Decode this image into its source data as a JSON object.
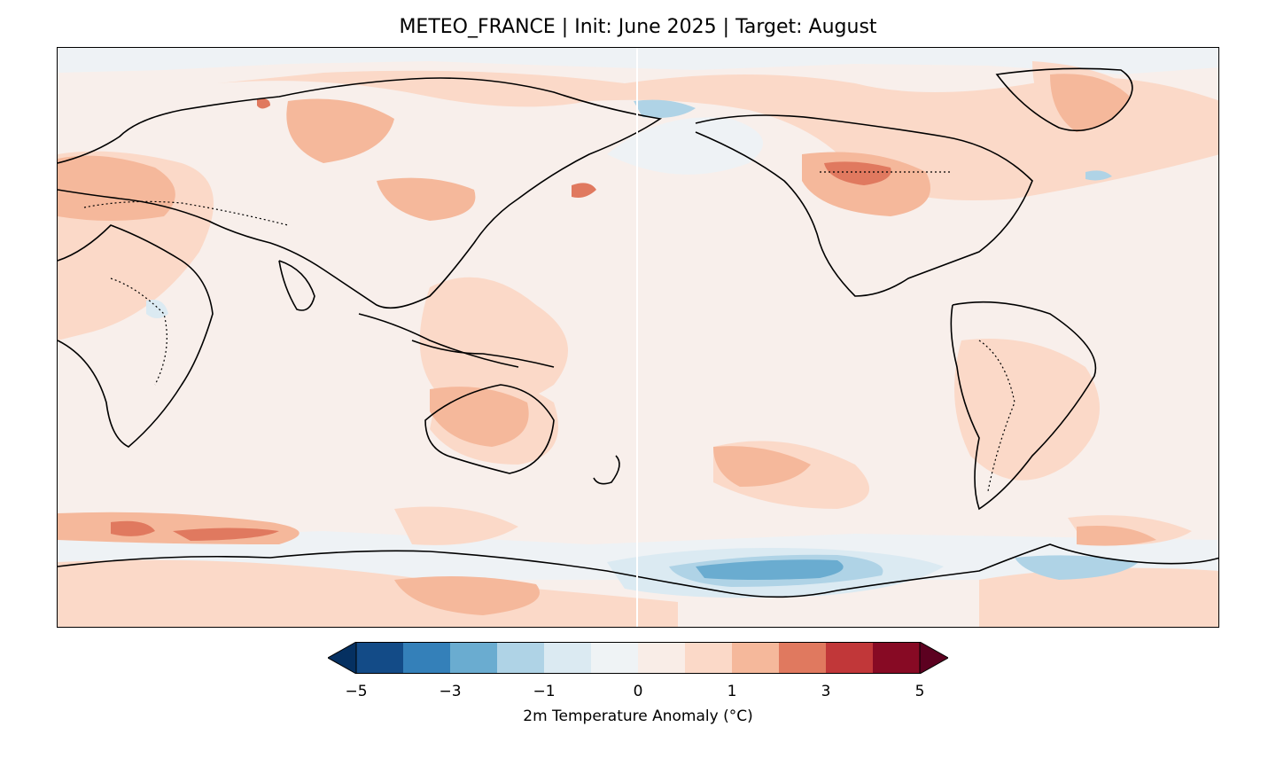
{
  "title": "METEO_FRANCE | Init: June 2025 | Target: August",
  "colorbar": {
    "label": "2m Temperature Anomaly (°C)",
    "ticks": [
      "−5",
      "−3",
      "−1",
      "0",
      "1",
      "3",
      "5"
    ],
    "levels": [
      -5,
      -4,
      -3,
      -2,
      -1,
      -0.5,
      0,
      0.5,
      1,
      2,
      3,
      4,
      5
    ],
    "colors": [
      "#053061",
      "#134b87",
      "#3480b9",
      "#6aacd0",
      "#afd3e6",
      "#dbeaf2",
      "#eff3f5",
      "#f9ede7",
      "#fbd9c8",
      "#f5b89b",
      "#e0795f",
      "#c13739",
      "#870a24",
      "#5c0120"
    ],
    "extend": "both"
  },
  "map": {
    "projection": "PlateCarree, central_longitude 180",
    "variable": "2m temperature anomaly",
    "units": "°C",
    "background_color": "#f8efeb",
    "dateline_line_color": "#ffffff"
  }
}
